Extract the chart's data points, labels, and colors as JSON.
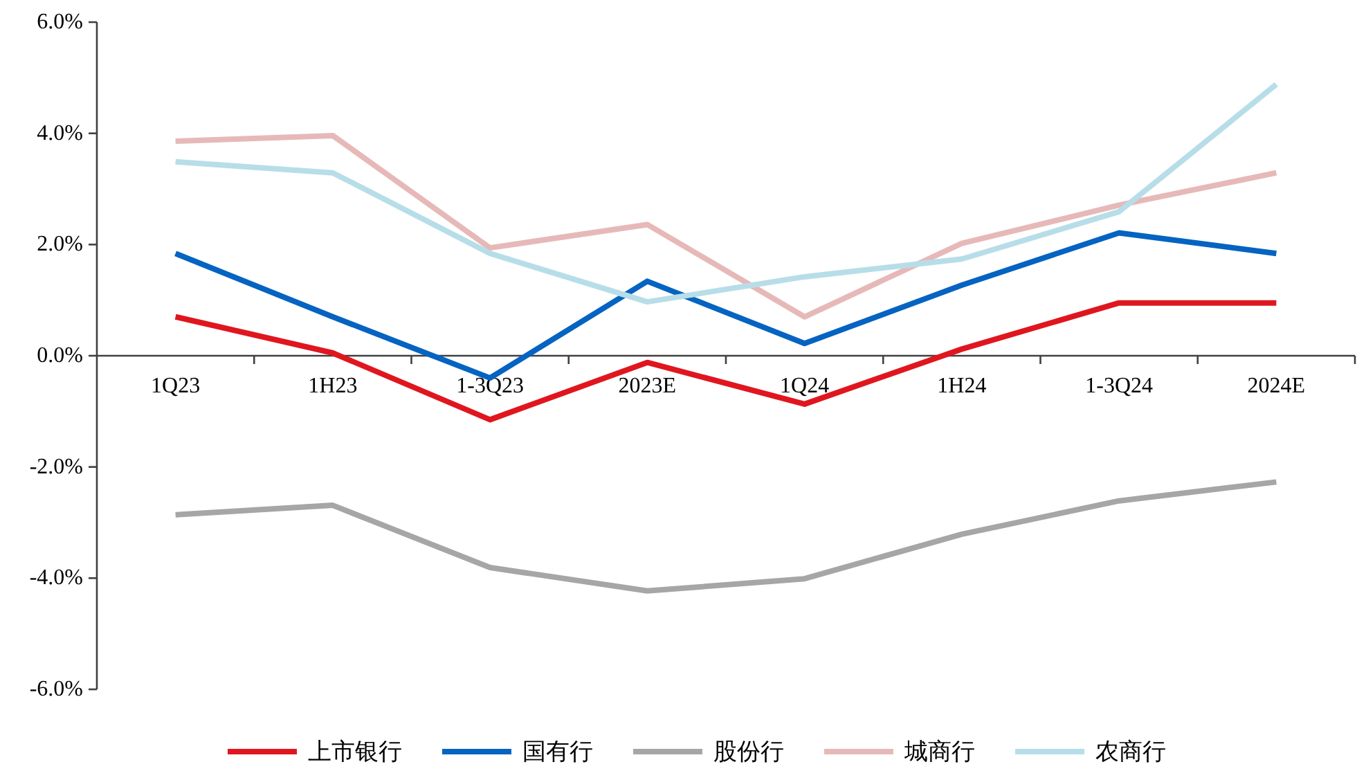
{
  "chart_data": {
    "type": "line",
    "categories": [
      "1Q23",
      "1H23",
      "1-3Q23",
      "2023E",
      "1Q24",
      "1H24",
      "1-3Q24",
      "2024E"
    ],
    "series": [
      {
        "name": "上市银行",
        "color": "#e0161f",
        "values": [
          0.7,
          0.05,
          -1.15,
          -0.12,
          -0.87,
          0.12,
          0.95,
          0.95
        ]
      },
      {
        "name": "国有行",
        "color": "#0563c1",
        "values": [
          1.84,
          0.7,
          -0.4,
          1.34,
          0.22,
          1.27,
          2.21,
          1.84
        ]
      },
      {
        "name": "股份行",
        "color": "#a6a6a6",
        "values": [
          -2.86,
          -2.69,
          -3.81,
          -4.23,
          -4.01,
          -3.21,
          -2.61,
          -2.27
        ]
      },
      {
        "name": "城商行",
        "color": "#e6b9b8",
        "values": [
          3.86,
          3.96,
          1.94,
          2.36,
          0.7,
          2.02,
          2.71,
          3.29
        ]
      },
      {
        "name": "农商行",
        "color": "#b7dee8",
        "values": [
          3.49,
          3.29,
          1.84,
          0.97,
          1.42,
          1.74,
          2.59,
          4.88
        ]
      }
    ],
    "ylim": [
      -6,
      6
    ],
    "yticks": [
      {
        "value": 6,
        "label": "6.0%"
      },
      {
        "value": 4,
        "label": "4.0%"
      },
      {
        "value": 2,
        "label": "2.0%"
      },
      {
        "value": 0,
        "label": "0.0%"
      },
      {
        "value": -2,
        "label": "-2.0%"
      },
      {
        "value": -4,
        "label": "-4.0%"
      },
      {
        "value": -6,
        "label": "-6.0%"
      }
    ],
    "grid": false,
    "legend": "bottom"
  }
}
